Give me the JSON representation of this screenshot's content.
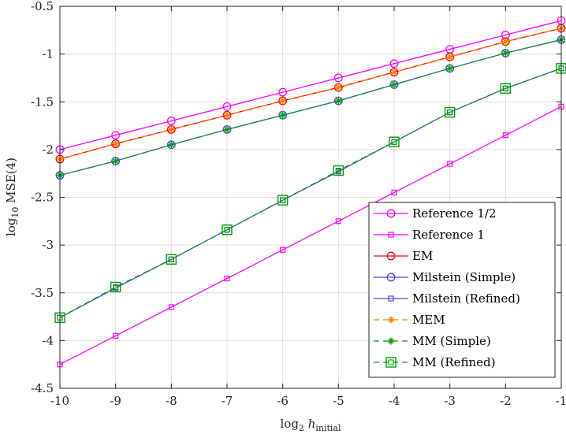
{
  "chart_data": {
    "type": "line",
    "title": "",
    "xlabel_main": "log",
    "xlabel_sub": "2",
    "xlabel_var": "h",
    "xlabel_varsub": "initial",
    "ylabel_main": "log",
    "ylabel_sub": "10",
    "ylabel_rest": "MSE(4)",
    "xlim": [
      -10,
      -1
    ],
    "ylim": [
      -4.5,
      -0.5
    ],
    "xticks": [
      -10,
      -9,
      -8,
      -7,
      -6,
      -5,
      -4,
      -3,
      -2,
      -1
    ],
    "xtick_labels": [
      "-10",
      "-9",
      "-8",
      "-7",
      "-6",
      "-5",
      "-4",
      "-3",
      "-2",
      "-1"
    ],
    "yticks": [
      -4.5,
      -4,
      -3.5,
      -3,
      -2.5,
      -2,
      -1.5,
      -1,
      -0.5
    ],
    "ytick_labels": [
      "-4.5",
      "-4",
      "-3.5",
      "-3",
      "-2.5",
      "-2",
      "-1.5",
      "-1",
      "-0.5"
    ],
    "grid": true,
    "legend_position": "bottom-right",
    "x": [
      -10,
      -9,
      -8,
      -7,
      -6,
      -5,
      -4,
      -3,
      -2,
      -1
    ],
    "series": [
      {
        "name": "Reference 1/2",
        "color": "#ff00ff",
        "marker": "circle",
        "dash": "solid",
        "values": [
          -2.0,
          -1.85,
          -1.7,
          -1.55,
          -1.4,
          -1.25,
          -1.1,
          -0.95,
          -0.8,
          -0.65
        ]
      },
      {
        "name": "Reference 1",
        "color": "#ff00ff",
        "marker": "square-small",
        "dash": "solid",
        "values": [
          -4.25,
          -3.95,
          -3.65,
          -3.35,
          -3.05,
          -2.75,
          -2.45,
          -2.15,
          -1.85,
          -1.55
        ]
      },
      {
        "name": "EM",
        "color": "#ff0000",
        "marker": "circle",
        "dash": "solid",
        "values": [
          -2.1,
          -1.94,
          -1.79,
          -1.64,
          -1.49,
          -1.35,
          -1.19,
          -1.03,
          -0.87,
          -0.73
        ]
      },
      {
        "name": "Milstein (Simple)",
        "color": "#4a4ae6",
        "marker": "circle",
        "dash": "solid",
        "values": [
          -2.27,
          -2.12,
          -1.95,
          -1.79,
          -1.64,
          -1.49,
          -1.32,
          -1.15,
          -0.99,
          -0.85
        ]
      },
      {
        "name": "Milstein (Refined)",
        "color": "#4a4ae6",
        "marker": "square-small",
        "dash": "solid",
        "values": [
          -3.76,
          -3.45,
          -3.15,
          -2.84,
          -2.53,
          -2.23,
          -1.92,
          -1.61,
          -1.36,
          -1.15
        ]
      },
      {
        "name": "MEM",
        "color": "#ff8000",
        "marker": "star",
        "dash": "dashed",
        "values": [
          -2.1,
          -1.94,
          -1.79,
          -1.64,
          -1.49,
          -1.35,
          -1.19,
          -1.03,
          -0.87,
          -0.73
        ]
      },
      {
        "name": "MM (Simple)",
        "color": "#00a000",
        "marker": "star",
        "dash": "dashed",
        "values": [
          -2.27,
          -2.12,
          -1.95,
          -1.79,
          -1.64,
          -1.49,
          -1.32,
          -1.15,
          -0.99,
          -0.85
        ]
      },
      {
        "name": "MM (Refined)",
        "color": "#00a000",
        "marker": "square-big",
        "dash": "dashed",
        "values": [
          -3.76,
          -3.44,
          -3.15,
          -2.84,
          -2.53,
          -2.22,
          -1.92,
          -1.61,
          -1.36,
          -1.15
        ]
      }
    ]
  }
}
